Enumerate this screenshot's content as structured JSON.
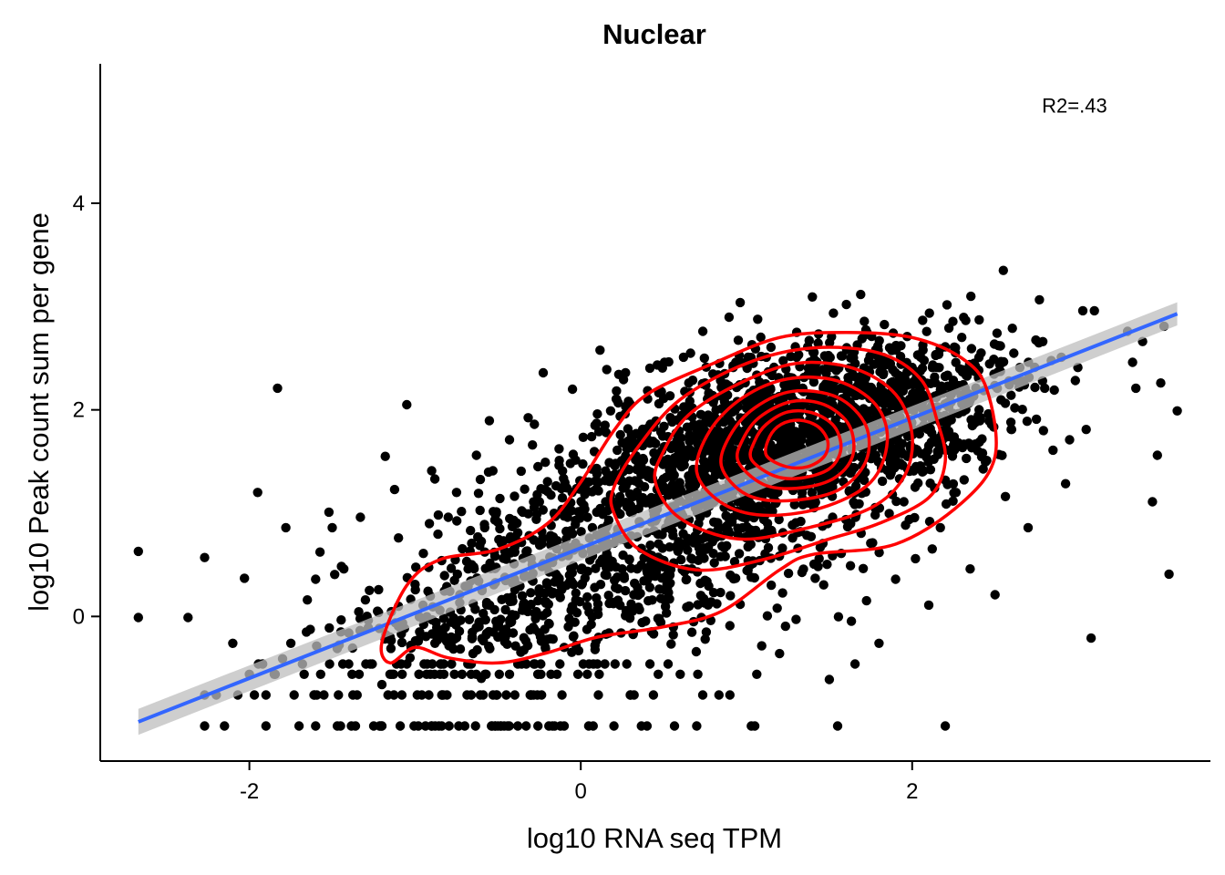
{
  "chart_data": {
    "type": "scatter",
    "title": "Nuclear",
    "xlabel": "log10 RNA seq TPM",
    "ylabel": "log10 Peak count sum per gene",
    "xlim": [
      -2.9,
      3.8
    ],
    "ylim": [
      -1.4,
      5.35
    ],
    "x_ticks": [
      -2,
      0,
      2
    ],
    "y_ticks": [
      0,
      2,
      4
    ],
    "x_tick_labels": [
      "-2",
      "0",
      "2"
    ],
    "y_tick_labels": [
      "0",
      "2",
      "4"
    ],
    "grid": false,
    "annotation": {
      "text": "R2=.43",
      "x": 2.98,
      "y": 4.95
    },
    "regression": {
      "type": "linear",
      "x0": -2.67,
      "y0": -1.02,
      "x1": 3.6,
      "y1": 2.93,
      "color": "#3366FF",
      "band_color": "#BEBEBE"
    },
    "point_color": "#000000",
    "contour_color": "#FF0000",
    "points": [
      [
        -2.67,
        0.63
      ],
      [
        -2.67,
        -0.01
      ],
      [
        -2.37,
        -0.01
      ],
      [
        -2.27,
        0.57
      ],
      [
        -2.27,
        -0.76
      ],
      [
        -2.27,
        -1.06
      ],
      [
        -2.2,
        -0.76
      ],
      [
        -2.15,
        -1.06
      ],
      [
        -2.1,
        -0.26
      ],
      [
        -2.07,
        -0.76
      ],
      [
        -2.03,
        0.37
      ],
      [
        -2.0,
        -0.56
      ],
      [
        -1.95,
        1.2
      ],
      [
        -1.92,
        -0.46
      ],
      [
        -1.9,
        -0.76
      ],
      [
        -1.85,
        -0.56
      ],
      [
        -1.83,
        2.21
      ],
      [
        -1.8,
        -0.41
      ],
      [
        -1.78,
        0.86
      ],
      [
        -1.75,
        -0.26
      ],
      [
        -1.73,
        -0.76
      ],
      [
        -1.7,
        -1.06
      ],
      [
        -1.68,
        -0.46
      ],
      [
        -1.65,
        0.16
      ],
      [
        -1.6,
        0.36
      ],
      [
        -1.57,
        -0.56
      ],
      [
        -1.55,
        -0.76
      ],
      [
        -1.52,
        1.01
      ],
      [
        -1.5,
        0.86
      ],
      [
        -1.47,
        -0.31
      ],
      [
        -1.45,
        -1.06
      ],
      [
        -1.43,
        0.46
      ],
      [
        -1.4,
        -0.16
      ],
      [
        -1.38,
        -0.56
      ],
      [
        -1.35,
        -0.76
      ],
      [
        -1.33,
        0.96
      ],
      [
        -1.3,
        0.16
      ],
      [
        -1.27,
        -0.46
      ],
      [
        -1.25,
        -1.06
      ],
      [
        -1.22,
        0.26
      ],
      [
        -1.2,
        -0.66
      ],
      [
        -1.18,
        1.55
      ],
      [
        -1.15,
        -0.2
      ],
      [
        -1.13,
        -0.56
      ],
      [
        -1.1,
        0.76
      ],
      [
        -1.08,
        -0.76
      ],
      [
        -1.05,
        2.05
      ],
      [
        -1.03,
        -0.4
      ],
      [
        -1.0,
        0.31
      ],
      [
        -0.98,
        -1.06
      ],
      [
        -0.95,
        0.61
      ],
      [
        -0.93,
        -0.56
      ],
      [
        -0.9,
        1.41
      ],
      [
        -0.88,
        -0.26
      ],
      [
        -0.85,
        0.06
      ],
      [
        -0.83,
        -0.76
      ],
      [
        -0.8,
        0.96
      ],
      [
        -0.78,
        -0.46
      ],
      [
        -0.75,
        1.2
      ],
      [
        -0.73,
        0.21
      ],
      [
        -0.7,
        -1.06
      ],
      [
        -0.68,
        0.46
      ],
      [
        -0.65,
        -0.36
      ],
      [
        -0.63,
        1.56
      ],
      [
        -0.6,
        -0.6
      ],
      [
        -0.58,
        0.86
      ],
      [
        -0.55,
        0.11
      ],
      [
        -0.53,
        1.41
      ],
      [
        -0.5,
        -0.2
      ],
      [
        -0.48,
        0.71
      ],
      [
        -0.45,
        -0.76
      ],
      [
        -0.43,
        1.71
      ],
      [
        -0.4,
        0.36
      ],
      [
        -0.38,
        -0.46
      ],
      [
        -0.35,
        1.01
      ],
      [
        -0.33,
        -1.06
      ],
      [
        -0.3,
        0.56
      ],
      [
        -0.28,
        1.86
      ],
      [
        -0.25,
        -0.16
      ],
      [
        -0.23,
        0.76
      ],
      [
        -0.2,
        1.21
      ],
      [
        -0.18,
        -0.56
      ],
      [
        -0.15,
        0.41
      ],
      [
        -0.13,
        1.51
      ],
      [
        -0.1,
        -0.3
      ],
      [
        -0.08,
        0.96
      ],
      [
        -0.05,
        2.2
      ],
      [
        -0.03,
        0.16
      ],
      [
        0.0,
        0.66
      ],
      [
        0.02,
        1.31
      ],
      [
        0.05,
        -0.46
      ],
      [
        0.07,
        0.86
      ],
      [
        0.1,
        1.96
      ],
      [
        0.12,
        0.31
      ],
      [
        0.15,
        1.11
      ],
      [
        0.17,
        -0.16
      ],
      [
        0.2,
        0.71
      ],
      [
        0.22,
        1.61
      ],
      [
        0.25,
        0.46
      ],
      [
        0.27,
        2.36
      ],
      [
        0.3,
        1.01
      ],
      [
        0.32,
        0.21
      ],
      [
        0.35,
        1.46
      ],
      [
        0.37,
        -0.06
      ],
      [
        0.4,
        0.81
      ],
      [
        0.42,
        1.86
      ],
      [
        0.45,
        0.56
      ],
      [
        0.47,
        1.26
      ],
      [
        0.5,
        2.11
      ],
      [
        0.52,
        0.31
      ],
      [
        0.55,
        1.06
      ],
      [
        0.57,
        1.66
      ],
      [
        0.6,
        0.71
      ],
      [
        0.62,
        2.51
      ],
      [
        0.65,
        1.36
      ],
      [
        0.67,
        0.46
      ],
      [
        0.7,
        1.81
      ],
      [
        0.72,
        0.96
      ],
      [
        0.75,
        2.26
      ],
      [
        0.77,
        1.21
      ],
      [
        0.8,
        0.61
      ],
      [
        0.82,
        1.56
      ],
      [
        0.85,
        2.01
      ],
      [
        0.87,
        0.86
      ],
      [
        0.9,
        1.36
      ],
      [
        0.92,
        2.41
      ],
      [
        0.95,
        1.11
      ],
      [
        0.97,
        1.71
      ],
      [
        1.0,
        0.76
      ],
      [
        1.02,
        2.16
      ],
      [
        1.05,
        1.46
      ],
      [
        1.07,
        1.91
      ],
      [
        1.1,
        1.01
      ],
      [
        1.12,
        2.51
      ],
      [
        1.15,
        1.61
      ],
      [
        1.17,
        1.26
      ],
      [
        1.2,
        2.06
      ],
      [
        1.22,
        0.81
      ],
      [
        1.25,
        1.76
      ],
      [
        1.27,
        2.31
      ],
      [
        1.3,
        1.41
      ],
      [
        1.32,
        1.91
      ],
      [
        1.35,
        1.11
      ],
      [
        1.37,
        2.61
      ],
      [
        1.4,
        1.66
      ],
      [
        1.42,
        2.11
      ],
      [
        1.45,
        1.31
      ],
      [
        1.47,
        1.86
      ],
      [
        1.5,
        2.41
      ],
      [
        1.52,
        0.96
      ],
      [
        1.55,
        1.56
      ],
      [
        1.57,
        2.21
      ],
      [
        1.6,
        1.76
      ],
      [
        1.62,
        1.21
      ],
      [
        1.65,
        2.56
      ],
      [
        1.67,
        1.96
      ],
      [
        1.7,
        1.46
      ],
      [
        1.72,
        2.31
      ],
      [
        1.75,
        0.71
      ],
      [
        1.77,
        1.81
      ],
      [
        1.8,
        2.11
      ],
      [
        1.82,
        1.31
      ],
      [
        1.85,
        2.46
      ],
      [
        1.87,
        1.61
      ],
      [
        1.9,
        0.36
      ],
      [
        1.92,
        2.01
      ],
      [
        1.95,
        1.11
      ],
      [
        1.97,
        2.71
      ],
      [
        2.0,
        1.76
      ],
      [
        2.02,
        0.56
      ],
      [
        2.05,
        2.21
      ],
      [
        2.07,
        1.41
      ],
      [
        2.1,
        0.11
      ],
      [
        2.12,
        1.91
      ],
      [
        2.15,
        2.41
      ],
      [
        2.17,
        0.86
      ],
      [
        2.2,
        2.61
      ],
      [
        2.25,
        1.66
      ],
      [
        2.3,
        2.06
      ],
      [
        2.35,
        0.46
      ],
      [
        2.4,
        2.31
      ],
      [
        2.45,
        1.51
      ],
      [
        2.5,
        0.21
      ],
      [
        2.55,
        3.35
      ],
      [
        2.6,
        1.81
      ],
      [
        2.65,
        2.41
      ],
      [
        2.7,
        0.86
      ],
      [
        2.75,
        1.91
      ],
      [
        2.8,
        2.21
      ],
      [
        2.85,
        1.61
      ],
      [
        2.9,
        2.51
      ],
      [
        2.95,
        1.71
      ],
      [
        3.0,
        2.41
      ],
      [
        3.03,
        2.96
      ],
      [
        3.05,
        1.81
      ],
      [
        3.08,
        -0.21
      ],
      [
        3.1,
        2.96
      ],
      [
        3.3,
        2.76
      ],
      [
        3.33,
        2.46
      ],
      [
        3.35,
        2.21
      ],
      [
        3.45,
        1.11
      ],
      [
        3.48,
        1.56
      ],
      [
        3.5,
        2.26
      ],
      [
        3.52,
        2.81
      ],
      [
        3.55,
        0.41
      ],
      [
        3.6,
        1.99
      ],
      [
        -0.5,
        -1.06
      ],
      [
        -0.3,
        -0.76
      ],
      [
        0.1,
        -0.46
      ],
      [
        0.3,
        -0.76
      ],
      [
        0.6,
        -0.56
      ],
      [
        0.9,
        -0.76
      ],
      [
        1.2,
        -0.36
      ],
      [
        1.5,
        -0.61
      ],
      [
        1.8,
        -0.26
      ],
      [
        2.2,
        -1.06
      ],
      [
        0.4,
        -1.06
      ],
      [
        0.7,
        -1.06
      ],
      [
        1.05,
        -1.06
      ],
      [
        1.55,
        -1.06
      ],
      [
        -1.9,
        -1.06
      ],
      [
        -1.6,
        -1.06
      ],
      [
        -1.2,
        -1.06
      ],
      [
        -0.9,
        -1.06
      ],
      [
        -0.1,
        -1.06
      ],
      [
        0.2,
        -1.06
      ]
    ],
    "dense_clusters": [
      {
        "x": 1.25,
        "y": 1.75,
        "sx": 0.55,
        "sy": 0.42,
        "n": 1400
      },
      {
        "x": 0.4,
        "y": 0.8,
        "sx": 0.7,
        "sy": 0.6,
        "n": 650
      },
      {
        "x": -0.5,
        "y": -0.1,
        "sx": 0.55,
        "sy": 0.45,
        "n": 350
      },
      {
        "x": 2.2,
        "y": 2.0,
        "sx": 0.35,
        "sy": 0.4,
        "n": 200
      }
    ],
    "contours": [
      [
        [
          -1.15,
          -0.45
        ],
        [
          -1.0,
          -0.3
        ],
        [
          -0.8,
          -0.4
        ],
        [
          -0.5,
          -0.45
        ],
        [
          -0.2,
          -0.35
        ],
        [
          0.1,
          -0.2
        ],
        [
          0.5,
          -0.1
        ],
        [
          0.85,
          0.05
        ],
        [
          1.2,
          0.45
        ],
        [
          1.4,
          0.6
        ],
        [
          1.9,
          0.7
        ],
        [
          2.3,
          1.1
        ],
        [
          2.5,
          1.55
        ],
        [
          2.45,
          2.2
        ],
        [
          2.3,
          2.5
        ],
        [
          2.0,
          2.7
        ],
        [
          1.6,
          2.75
        ],
        [
          1.2,
          2.7
        ],
        [
          0.8,
          2.45
        ],
        [
          0.4,
          2.15
        ],
        [
          0.2,
          1.8
        ],
        [
          0.0,
          1.3
        ],
        [
          -0.2,
          0.9
        ],
        [
          -0.5,
          0.65
        ],
        [
          -0.85,
          0.55
        ],
        [
          -1.05,
          0.3
        ],
        [
          -1.2,
          -0.25
        ],
        [
          -1.15,
          -0.45
        ]
      ],
      [
        [
          0.2,
          1.0
        ],
        [
          0.35,
          0.65
        ],
        [
          0.7,
          0.45
        ],
        [
          1.1,
          0.55
        ],
        [
          1.5,
          0.75
        ],
        [
          1.8,
          0.9
        ],
        [
          2.1,
          1.15
        ],
        [
          2.2,
          1.5
        ],
        [
          2.15,
          1.9
        ],
        [
          2.05,
          2.3
        ],
        [
          1.8,
          2.55
        ],
        [
          1.4,
          2.6
        ],
        [
          1.0,
          2.45
        ],
        [
          0.6,
          2.1
        ],
        [
          0.35,
          1.65
        ],
        [
          0.2,
          1.25
        ],
        [
          0.2,
          1.0
        ]
      ],
      [
        [
          0.45,
          1.3
        ],
        [
          0.6,
          0.95
        ],
        [
          0.95,
          0.75
        ],
        [
          1.35,
          0.85
        ],
        [
          1.75,
          1.05
        ],
        [
          1.95,
          1.35
        ],
        [
          2.0,
          1.75
        ],
        [
          1.9,
          2.15
        ],
        [
          1.65,
          2.4
        ],
        [
          1.3,
          2.45
        ],
        [
          0.95,
          2.25
        ],
        [
          0.65,
          1.95
        ],
        [
          0.5,
          1.6
        ],
        [
          0.45,
          1.3
        ]
      ],
      [
        [
          0.7,
          1.4
        ],
        [
          0.85,
          1.1
        ],
        [
          1.1,
          0.98
        ],
        [
          1.45,
          1.05
        ],
        [
          1.75,
          1.3
        ],
        [
          1.85,
          1.7
        ],
        [
          1.78,
          2.05
        ],
        [
          1.55,
          2.28
        ],
        [
          1.25,
          2.3
        ],
        [
          0.98,
          2.12
        ],
        [
          0.78,
          1.8
        ],
        [
          0.7,
          1.4
        ]
      ],
      [
        [
          0.85,
          1.45
        ],
        [
          1.0,
          1.18
        ],
        [
          1.25,
          1.12
        ],
        [
          1.55,
          1.22
        ],
        [
          1.72,
          1.5
        ],
        [
          1.72,
          1.85
        ],
        [
          1.55,
          2.12
        ],
        [
          1.28,
          2.18
        ],
        [
          1.05,
          2.02
        ],
        [
          0.9,
          1.75
        ],
        [
          0.85,
          1.45
        ]
      ],
      [
        [
          0.95,
          1.5
        ],
        [
          1.1,
          1.28
        ],
        [
          1.3,
          1.24
        ],
        [
          1.52,
          1.33
        ],
        [
          1.64,
          1.55
        ],
        [
          1.62,
          1.85
        ],
        [
          1.47,
          2.05
        ],
        [
          1.27,
          2.08
        ],
        [
          1.08,
          1.93
        ],
        [
          0.98,
          1.72
        ],
        [
          0.95,
          1.5
        ]
      ],
      [
        [
          1.03,
          1.52
        ],
        [
          1.17,
          1.36
        ],
        [
          1.33,
          1.34
        ],
        [
          1.5,
          1.43
        ],
        [
          1.57,
          1.62
        ],
        [
          1.53,
          1.84
        ],
        [
          1.4,
          1.97
        ],
        [
          1.25,
          1.98
        ],
        [
          1.12,
          1.86
        ],
        [
          1.05,
          1.7
        ],
        [
          1.03,
          1.52
        ]
      ],
      [
        [
          1.12,
          1.56
        ],
        [
          1.24,
          1.45
        ],
        [
          1.37,
          1.45
        ],
        [
          1.47,
          1.55
        ],
        [
          1.49,
          1.7
        ],
        [
          1.43,
          1.84
        ],
        [
          1.32,
          1.9
        ],
        [
          1.21,
          1.86
        ],
        [
          1.14,
          1.74
        ],
        [
          1.12,
          1.56
        ]
      ]
    ]
  }
}
